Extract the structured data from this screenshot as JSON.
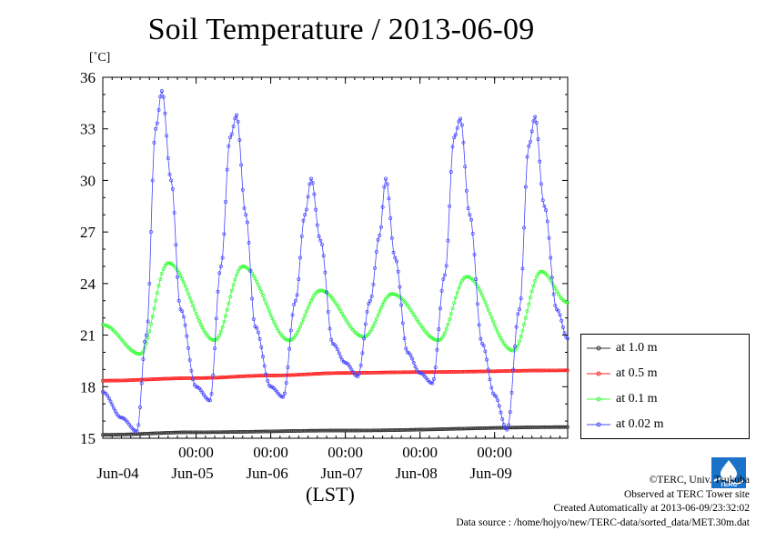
{
  "title": "Soil Temperature / 2013-06-09",
  "y_unit": "[˚C]",
  "x_unit": "(LST)",
  "credits": [
    "©TERC, Univ. Tsukuba",
    "Observed at TERC Tower site",
    "Created Automatically at 2013-06-09/23:32:02",
    "Data source : /home/hojyo/new/TERC-data/sorted_data/MET.30m.dat"
  ],
  "logo_text": "TERC",
  "chart_data": {
    "type": "line",
    "title": "Soil Temperature / 2013-06-09",
    "ylabel": "[˚C]",
    "xlabel": "(LST)",
    "ylim": [
      15,
      36
    ],
    "yticks": [
      15,
      18,
      21,
      24,
      27,
      30,
      33,
      36
    ],
    "xlim": [
      "2013-06-03T18:00",
      "2013-06-09T23:30"
    ],
    "xticks": [
      {
        "time": "2013-06-05T00:00",
        "label": "00:00"
      },
      {
        "time": "2013-06-06T00:00",
        "label": "00:00"
      },
      {
        "time": "2013-06-07T00:00",
        "label": "00:00"
      },
      {
        "time": "2013-06-08T00:00",
        "label": "00:00"
      },
      {
        "time": "2013-06-09T00:00",
        "label": "00:00"
      }
    ],
    "day_labels": [
      {
        "time": "2013-06-04T12:00",
        "label": "Jun-04"
      },
      {
        "time": "2013-06-05T12:00",
        "label": "Jun-05"
      },
      {
        "time": "2013-06-06T12:00",
        "label": "Jun-06"
      },
      {
        "time": "2013-06-07T12:00",
        "label": "Jun-07"
      },
      {
        "time": "2013-06-08T12:00",
        "label": "Jun-08"
      },
      {
        "time": "2013-06-09T12:00",
        "label": "Jun-09"
      }
    ],
    "legend_position": "right, below plot midline",
    "series": [
      {
        "name": "at 1.0 m",
        "color": "#333333",
        "points": [
          [
            "2013-06-03T18:00",
            15.2
          ],
          [
            "2013-06-05T00:00",
            15.35
          ],
          [
            "2013-06-07T00:00",
            15.45
          ],
          [
            "2013-06-09T23:30",
            15.65
          ]
        ]
      },
      {
        "name": "at 0.5 m",
        "color": "#ff2020",
        "points": [
          [
            "2013-06-03T18:00",
            18.35
          ],
          [
            "2013-06-05T00:00",
            18.5
          ],
          [
            "2013-06-06T00:00",
            18.65
          ],
          [
            "2013-06-07T00:00",
            18.8
          ],
          [
            "2013-06-08T00:00",
            18.85
          ],
          [
            "2013-06-09T23:30",
            18.95
          ]
        ]
      },
      {
        "name": "at 0.1 m",
        "color": "#33ff33",
        "points": [
          [
            "2013-06-03T18:00",
            21.6
          ],
          [
            "2013-06-04T06:00",
            19.9
          ],
          [
            "2013-06-04T15:00",
            25.2
          ],
          [
            "2013-06-05T06:00",
            20.7
          ],
          [
            "2013-06-05T15:00",
            25.0
          ],
          [
            "2013-06-06T06:00",
            20.7
          ],
          [
            "2013-06-06T16:00",
            23.6
          ],
          [
            "2013-06-07T06:00",
            20.9
          ],
          [
            "2013-06-07T15:00",
            23.4
          ],
          [
            "2013-06-08T06:00",
            20.7
          ],
          [
            "2013-06-08T15:00",
            24.4
          ],
          [
            "2013-06-09T06:00",
            20.1
          ],
          [
            "2013-06-09T15:00",
            24.7
          ],
          [
            "2013-06-09T23:30",
            22.9
          ]
        ]
      },
      {
        "name": "at 0.02 m",
        "color": "#4444ff",
        "points": [
          [
            "2013-06-03T18:00",
            17.7
          ],
          [
            "2013-06-04T00:00",
            16.2
          ],
          [
            "2013-06-04T05:00",
            15.4
          ],
          [
            "2013-06-04T08:00",
            21.0
          ],
          [
            "2013-06-04T11:00",
            33.0
          ],
          [
            "2013-06-04T13:00",
            35.2
          ],
          [
            "2013-06-04T16:00",
            30.0
          ],
          [
            "2013-06-04T19:00",
            22.5
          ],
          [
            "2013-06-05T00:00",
            18.0
          ],
          [
            "2013-06-05T04:30",
            17.2
          ],
          [
            "2013-06-05T08:00",
            25.0
          ],
          [
            "2013-06-05T11:00",
            32.5
          ],
          [
            "2013-06-05T13:00",
            33.8
          ],
          [
            "2013-06-05T16:00",
            28.0
          ],
          [
            "2013-06-05T19:00",
            21.5
          ],
          [
            "2013-06-06T00:00",
            18.0
          ],
          [
            "2013-06-06T04:00",
            17.4
          ],
          [
            "2013-06-06T08:00",
            23.0
          ],
          [
            "2013-06-06T11:00",
            28.0
          ],
          [
            "2013-06-06T13:00",
            30.1
          ],
          [
            "2013-06-06T16:00",
            26.5
          ],
          [
            "2013-06-06T20:00",
            20.5
          ],
          [
            "2013-06-07T00:00",
            19.4
          ],
          [
            "2013-06-07T04:00",
            18.6
          ],
          [
            "2013-06-07T08:00",
            23.0
          ],
          [
            "2013-06-07T11:00",
            26.8
          ],
          [
            "2013-06-07T13:00",
            30.1
          ],
          [
            "2013-06-07T16:00",
            25.5
          ],
          [
            "2013-06-07T20:00",
            20.0
          ],
          [
            "2013-06-08T00:00",
            18.8
          ],
          [
            "2013-06-08T04:00",
            18.2
          ],
          [
            "2013-06-08T08:00",
            24.5
          ],
          [
            "2013-06-08T11:00",
            32.5
          ],
          [
            "2013-06-08T13:00",
            33.6
          ],
          [
            "2013-06-08T16:00",
            28.0
          ],
          [
            "2013-06-08T20:00",
            20.5
          ],
          [
            "2013-06-09T00:00",
            17.5
          ],
          [
            "2013-06-09T04:00",
            15.5
          ],
          [
            "2013-06-09T08:00",
            22.5
          ],
          [
            "2013-06-09T11:00",
            32.0
          ],
          [
            "2013-06-09T13:00",
            33.7
          ],
          [
            "2013-06-09T16:00",
            28.5
          ],
          [
            "2013-06-09T20:00",
            22.5
          ],
          [
            "2013-06-09T23:30",
            20.8
          ]
        ]
      }
    ]
  }
}
